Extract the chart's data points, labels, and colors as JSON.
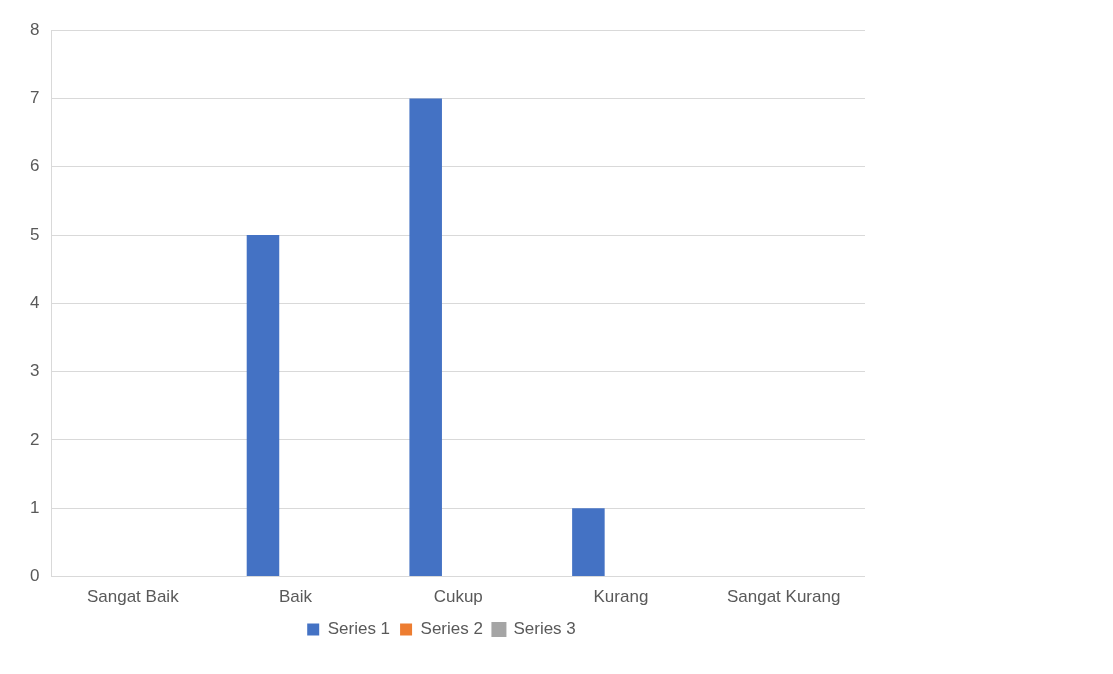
{
  "chart_data": {
    "type": "bar",
    "categories": [
      "Sangat Baik",
      "Baik",
      "Cukup",
      "Kurang",
      "Sangat Kurang"
    ],
    "series": [
      {
        "name": "Series 1",
        "color": "#4472c4",
        "values": [
          0,
          5,
          7,
          1,
          0
        ]
      },
      {
        "name": "Series 2",
        "color": "#ed7d31",
        "values": [
          null,
          null,
          null,
          null,
          null
        ]
      },
      {
        "name": "Series 3",
        "color": "#a5a5a5",
        "type": "line",
        "values": [
          null,
          null,
          null,
          null,
          null
        ]
      }
    ],
    "ylim": [
      0,
      8
    ],
    "yticks": [
      0,
      1,
      2,
      3,
      4,
      5,
      6,
      7,
      8
    ],
    "grid": "y",
    "legend": "bottom"
  }
}
